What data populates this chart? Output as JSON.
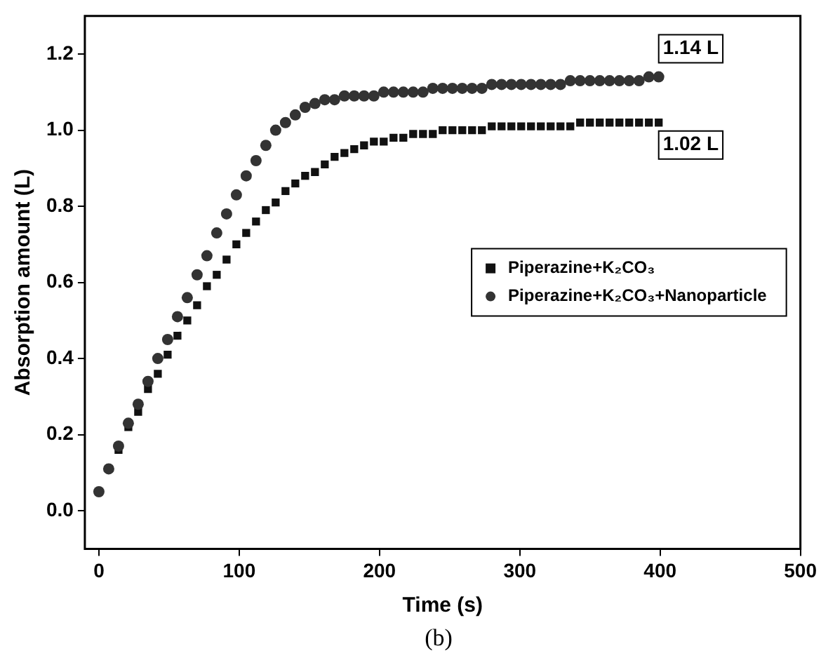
{
  "chart_data": {
    "type": "scatter",
    "xlabel": "Time (s)",
    "ylabel": "Absorption amount (L)",
    "xlim": [
      -10,
      500
    ],
    "ylim": [
      -0.1,
      1.3
    ],
    "xticks": [
      0,
      100,
      200,
      300,
      400,
      500
    ],
    "yticks": [
      {
        "value": 0,
        "label": "0.0"
      },
      {
        "value": 0.2,
        "label": "0.2"
      },
      {
        "value": 0.4,
        "label": "0.4"
      },
      {
        "value": 0.6,
        "label": "0.6"
      },
      {
        "value": 0.8,
        "label": "0.8"
      },
      {
        "value": 1,
        "label": "1.0"
      },
      {
        "value": 1.2,
        "label": "1.2"
      }
    ],
    "x": [
      0,
      7,
      14,
      21,
      28,
      35,
      42,
      49,
      56,
      63,
      70,
      77,
      84,
      91,
      98,
      105,
      112,
      119,
      126,
      133,
      140,
      147,
      154,
      161,
      168,
      175,
      182,
      189,
      196,
      203,
      210,
      217,
      224,
      231,
      238,
      245,
      252,
      259,
      266,
      273,
      280,
      287,
      294,
      301,
      308,
      315,
      322,
      329,
      336,
      343,
      350,
      357,
      364,
      371,
      378,
      385,
      392,
      399
    ],
    "series": [
      {
        "name": "Piperazine+K₂CO₃",
        "color": "#111111",
        "marker": "square",
        "values": [
          null,
          null,
          0.16,
          0.22,
          0.26,
          0.32,
          0.36,
          0.41,
          0.46,
          0.5,
          0.54,
          0.59,
          0.62,
          0.66,
          0.7,
          0.73,
          0.76,
          0.79,
          0.81,
          0.84,
          0.86,
          0.88,
          0.89,
          0.91,
          0.93,
          0.94,
          0.95,
          0.96,
          0.97,
          0.97,
          0.98,
          0.98,
          0.99,
          0.99,
          0.99,
          1.0,
          1.0,
          1.0,
          1.0,
          1.0,
          1.01,
          1.01,
          1.01,
          1.01,
          1.01,
          1.01,
          1.01,
          1.01,
          1.01,
          1.02,
          1.02,
          1.02,
          1.02,
          1.02,
          1.02,
          1.02,
          1.02,
          1.02
        ]
      },
      {
        "name": "Piperazine+K₂CO₃+Nanoparticle",
        "color": "#333333",
        "marker": "circle",
        "values": [
          0.05,
          0.11,
          0.17,
          0.23,
          0.28,
          0.34,
          0.4,
          0.45,
          0.51,
          0.56,
          0.62,
          0.67,
          0.73,
          0.78,
          0.83,
          0.88,
          0.92,
          0.96,
          1.0,
          1.02,
          1.04,
          1.06,
          1.07,
          1.08,
          1.08,
          1.09,
          1.09,
          1.09,
          1.09,
          1.1,
          1.1,
          1.1,
          1.1,
          1.1,
          1.11,
          1.11,
          1.11,
          1.11,
          1.11,
          1.11,
          1.12,
          1.12,
          1.12,
          1.12,
          1.12,
          1.12,
          1.12,
          1.12,
          1.13,
          1.13,
          1.13,
          1.13,
          1.13,
          1.13,
          1.13,
          1.13,
          1.14,
          1.14
        ]
      }
    ],
    "annotations": [
      {
        "text": "1.14 L",
        "x": 399,
        "y": 1.14
      },
      {
        "text": "1.02 L",
        "x": 399,
        "y": 1.02
      },
      "(b)"
    ],
    "legend": "right",
    "grid": false
  }
}
